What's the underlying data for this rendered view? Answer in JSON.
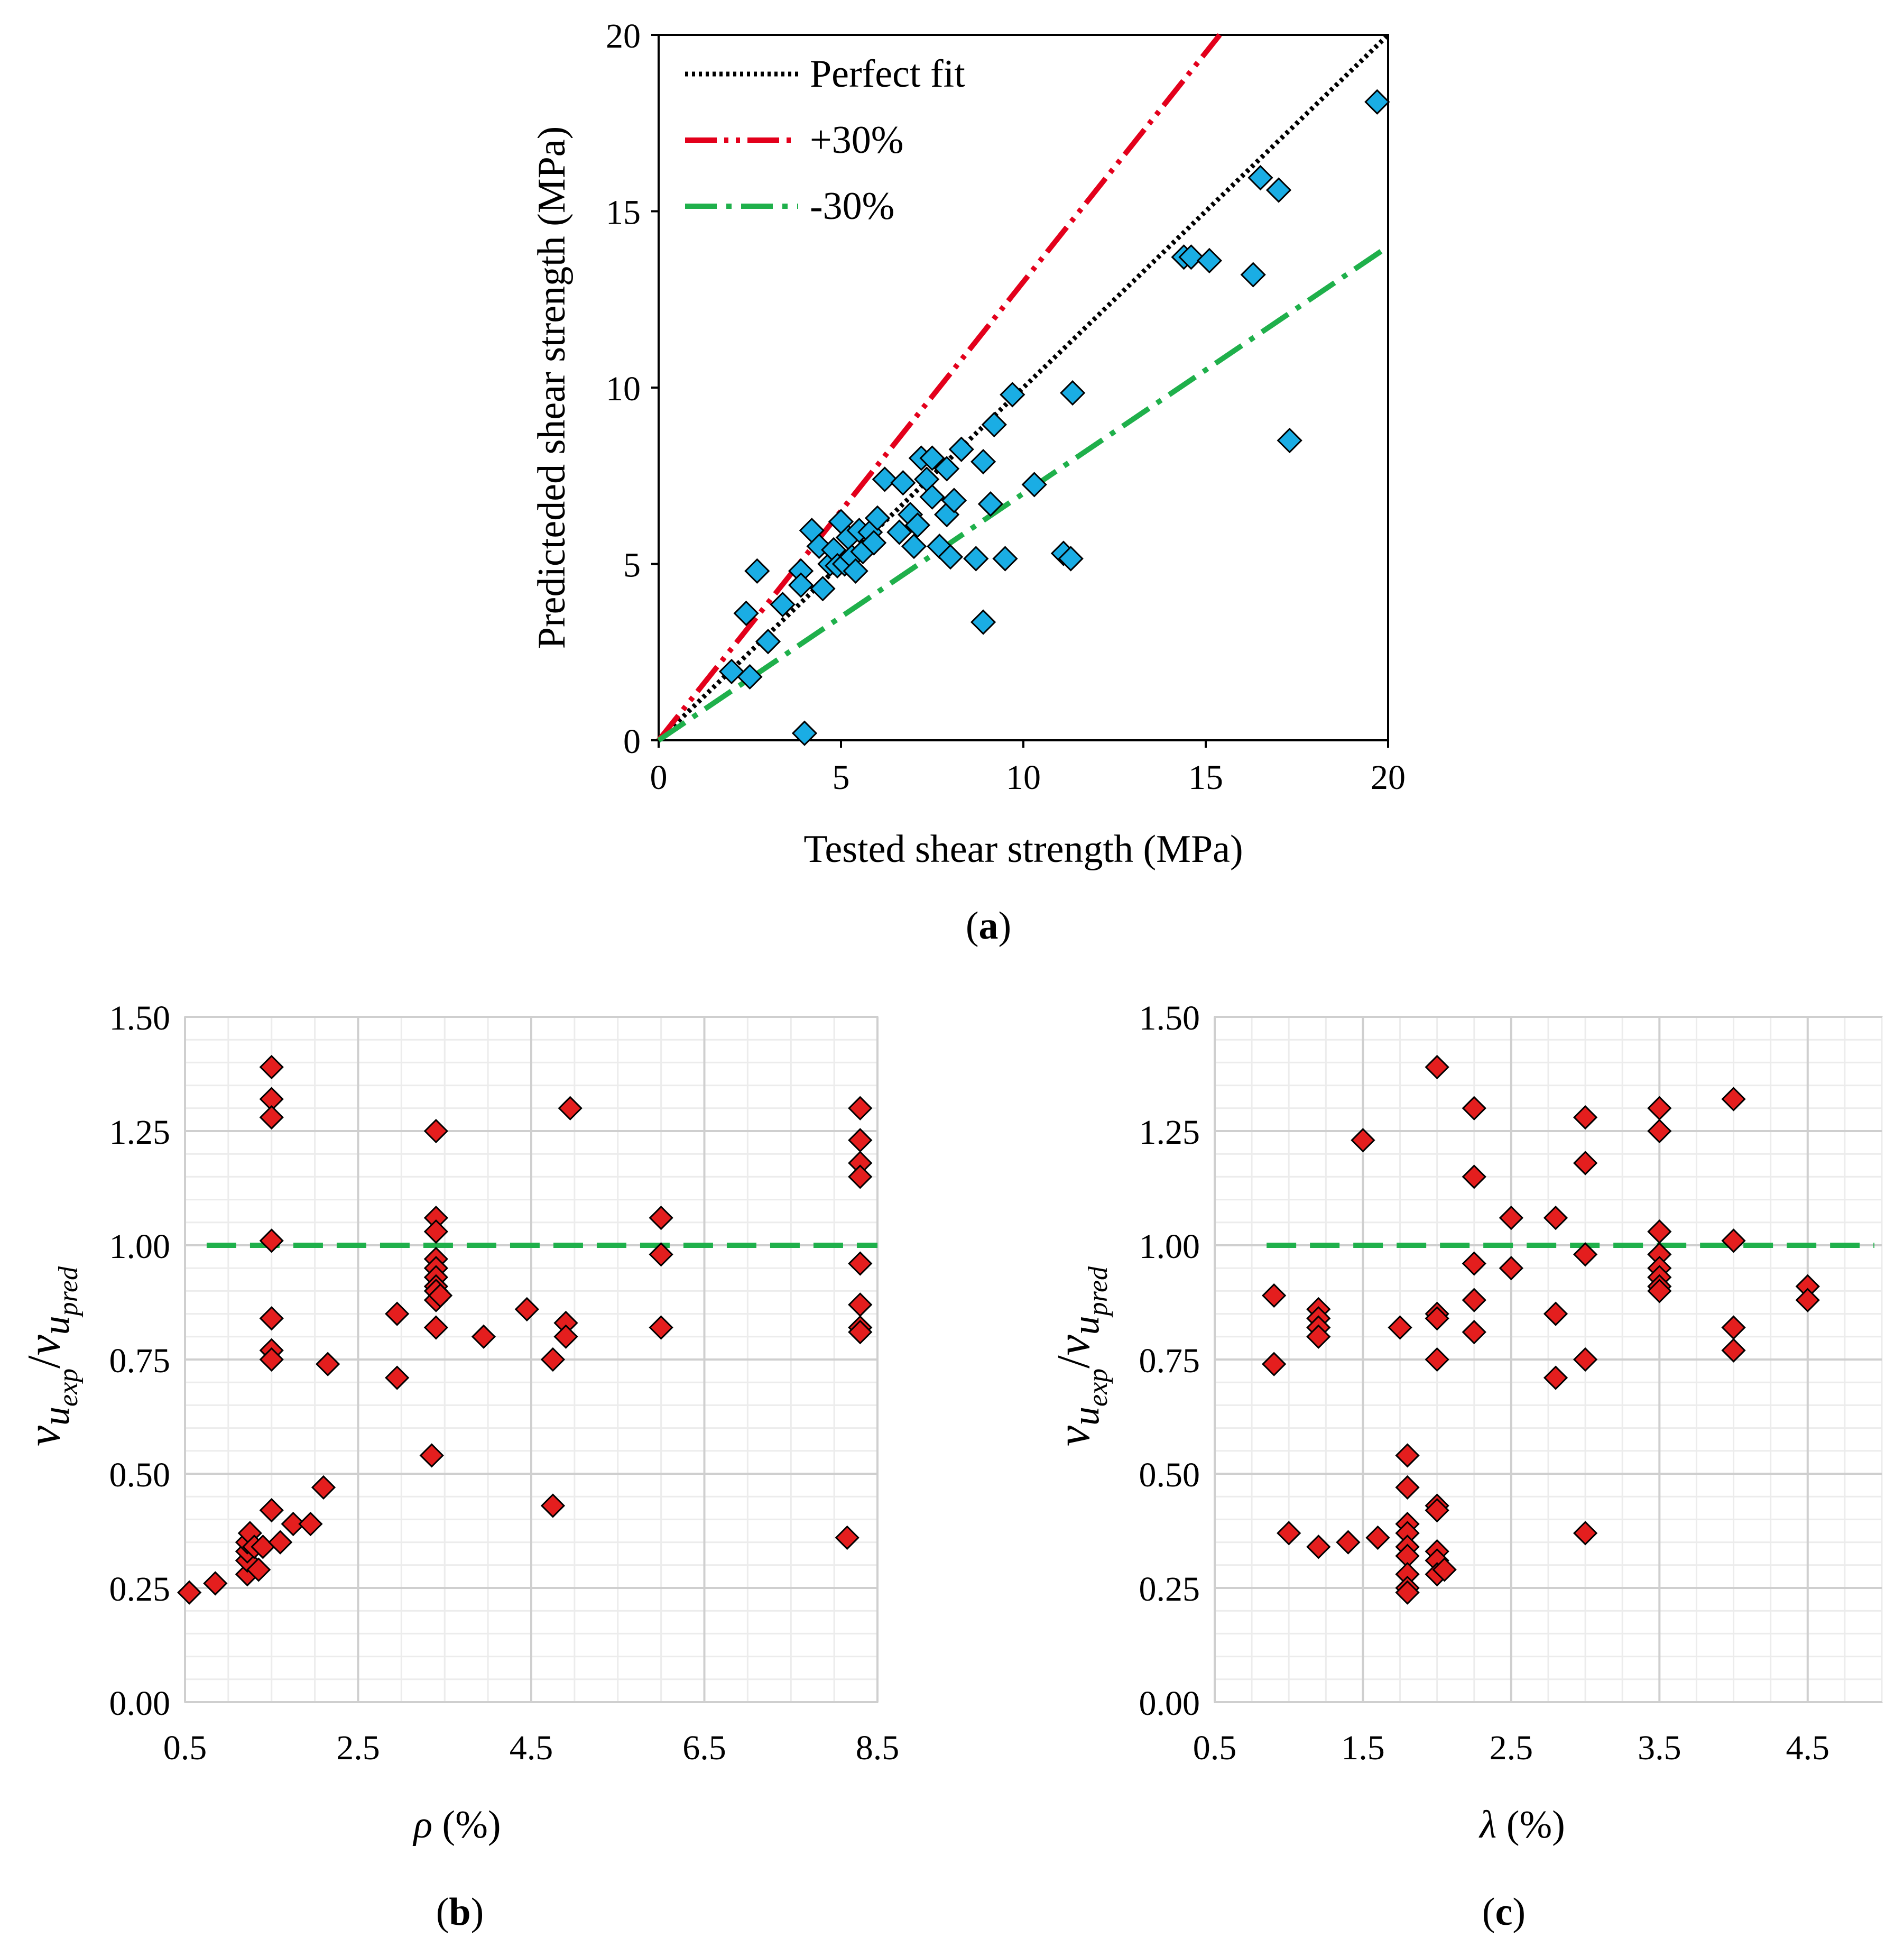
{
  "colors": {
    "marker_a": "#1AADE4",
    "marker_bc": "#E41E1E",
    "perfect_fit": "#000000",
    "plus30": "#E3001B",
    "minus30": "#1FB04B",
    "unity": "#1FB04B"
  },
  "chart_data": [
    {
      "id": "a",
      "type": "scatter",
      "caption_letter": "a",
      "caption_open": "(",
      "caption_close": ")",
      "xlabel": "Tested shear strength (MPa)",
      "ylabel": "Predicteded shear strength (MPa)",
      "xlim": [
        0,
        20
      ],
      "ylim": [
        0,
        20
      ],
      "xticks": [
        0,
        5,
        10,
        15,
        20
      ],
      "yticks": [
        0,
        5,
        10,
        15,
        20
      ],
      "legend": [
        {
          "label": "Perfect fit",
          "style": "dotted",
          "color": "#000000"
        },
        {
          "label": "+30%",
          "style": "dash-dot-dot",
          "color": "#E3001B"
        },
        {
          "label": "-30%",
          "style": "dash-dot",
          "color": "#1FB04B"
        }
      ],
      "lines": [
        {
          "name": "Perfect fit",
          "slope": 1.0
        },
        {
          "name": "+30%",
          "slope": 1.3
        },
        {
          "name": "-30%",
          "slope": 0.7
        }
      ],
      "points": [
        [
          2.0,
          1.95
        ],
        [
          2.5,
          1.8
        ],
        [
          2.4,
          3.6
        ],
        [
          2.7,
          4.8
        ],
        [
          3.0,
          2.8
        ],
        [
          3.4,
          3.85
        ],
        [
          3.9,
          4.8
        ],
        [
          3.9,
          4.4
        ],
        [
          4.0,
          0.2
        ],
        [
          4.2,
          5.95
        ],
        [
          4.4,
          5.5
        ],
        [
          4.5,
          4.3
        ],
        [
          4.7,
          5.0
        ],
        [
          4.8,
          5.4
        ],
        [
          4.9,
          4.95
        ],
        [
          5.0,
          6.2
        ],
        [
          5.1,
          5.0
        ],
        [
          5.2,
          5.75
        ],
        [
          5.3,
          5.2
        ],
        [
          5.4,
          4.8
        ],
        [
          5.5,
          5.95
        ],
        [
          5.6,
          5.35
        ],
        [
          5.8,
          5.9
        ],
        [
          5.9,
          5.6
        ],
        [
          6.0,
          6.3
        ],
        [
          6.2,
          7.4
        ],
        [
          6.6,
          5.9
        ],
        [
          6.7,
          7.3
        ],
        [
          6.9,
          6.4
        ],
        [
          7.0,
          5.5
        ],
        [
          7.1,
          6.1
        ],
        [
          7.2,
          8.0
        ],
        [
          7.35,
          7.4
        ],
        [
          7.5,
          8.0
        ],
        [
          7.5,
          6.9
        ],
        [
          7.7,
          5.5
        ],
        [
          7.9,
          6.4
        ],
        [
          7.9,
          7.7
        ],
        [
          8.0,
          5.2
        ],
        [
          8.1,
          6.8
        ],
        [
          8.3,
          8.25
        ],
        [
          8.7,
          5.15
        ],
        [
          8.9,
          7.9
        ],
        [
          8.9,
          3.35
        ],
        [
          9.1,
          6.7
        ],
        [
          9.2,
          8.95
        ],
        [
          9.5,
          5.15
        ],
        [
          9.7,
          9.8
        ],
        [
          10.3,
          7.25
        ],
        [
          11.1,
          5.3
        ],
        [
          11.3,
          5.15
        ],
        [
          11.35,
          9.85
        ],
        [
          14.4,
          13.7
        ],
        [
          14.6,
          13.7
        ],
        [
          15.1,
          13.6
        ],
        [
          16.3,
          13.2
        ],
        [
          16.5,
          15.95
        ],
        [
          17.0,
          15.6
        ],
        [
          17.3,
          8.5
        ],
        [
          19.7,
          18.1
        ]
      ]
    },
    {
      "id": "b",
      "type": "scatter",
      "caption_letter": "b",
      "caption_open": "(",
      "caption_close": ")",
      "xlabel_symbol": "ρ",
      "xlabel_unit": " (%)",
      "ylabel_sym": "v",
      "ylabel_sub": "u",
      "ylabel_subsub1": "exp",
      "ylabel_slash": "/",
      "ylabel_subsub2": "pred",
      "xlim": [
        0.5,
        8.5
      ],
      "ylim": [
        0.0,
        1.5
      ],
      "xticks": [
        "0.5",
        "2.5",
        "4.5",
        "6.5",
        "8.5"
      ],
      "yticks": [
        "0.00",
        "0.25",
        "0.50",
        "0.75",
        "1.00",
        "1.25",
        "1.50"
      ],
      "reference_line": {
        "y": 1.0,
        "x_from": 0.75,
        "x_to": 8.5,
        "style": "dashed"
      },
      "points": [
        [
          0.55,
          0.24
        ],
        [
          0.85,
          0.26
        ],
        [
          1.22,
          0.28
        ],
        [
          1.22,
          0.31
        ],
        [
          1.22,
          0.33
        ],
        [
          1.22,
          0.35
        ],
        [
          1.25,
          0.37
        ],
        [
          1.3,
          0.34
        ],
        [
          1.35,
          0.29
        ],
        [
          1.4,
          0.34
        ],
        [
          1.5,
          0.42
        ],
        [
          1.6,
          0.35
        ],
        [
          1.75,
          0.39
        ],
        [
          1.95,
          0.39
        ],
        [
          2.1,
          0.47
        ],
        [
          2.15,
          0.74
        ],
        [
          1.5,
          1.39
        ],
        [
          1.5,
          1.32
        ],
        [
          1.5,
          1.28
        ],
        [
          1.5,
          1.01
        ],
        [
          1.5,
          0.84
        ],
        [
          1.5,
          0.77
        ],
        [
          1.5,
          0.75
        ],
        [
          2.95,
          0.85
        ],
        [
          2.95,
          0.71
        ],
        [
          3.35,
          0.54
        ],
        [
          3.4,
          0.82
        ],
        [
          3.4,
          1.25
        ],
        [
          3.4,
          1.06
        ],
        [
          3.4,
          1.03
        ],
        [
          3.4,
          0.97
        ],
        [
          3.4,
          0.95
        ],
        [
          3.4,
          0.93
        ],
        [
          3.4,
          0.91
        ],
        [
          3.4,
          0.9
        ],
        [
          3.4,
          0.88
        ],
        [
          3.45,
          0.89
        ],
        [
          3.95,
          0.8
        ],
        [
          4.45,
          0.86
        ],
        [
          4.75,
          0.75
        ],
        [
          4.75,
          0.43
        ],
        [
          4.9,
          0.83
        ],
        [
          4.9,
          0.8
        ],
        [
          4.95,
          1.3
        ],
        [
          6.0,
          1.06
        ],
        [
          6.0,
          0.98
        ],
        [
          6.0,
          0.82
        ],
        [
          8.15,
          0.36
        ],
        [
          8.3,
          1.3
        ],
        [
          8.3,
          1.23
        ],
        [
          8.3,
          1.18
        ],
        [
          8.3,
          1.15
        ],
        [
          8.3,
          0.96
        ],
        [
          8.3,
          0.87
        ],
        [
          8.3,
          0.82
        ],
        [
          8.3,
          0.81
        ]
      ]
    },
    {
      "id": "c",
      "type": "scatter",
      "caption_letter": "c",
      "caption_open": "(",
      "caption_close": ")",
      "xlabel_symbol": "λ",
      "xlabel_unit": " (%)",
      "ylabel_sym": "v",
      "ylabel_sub": "u",
      "ylabel_subsub1": "exp",
      "ylabel_slash": "/",
      "ylabel_subsub2": "pred",
      "xlim": [
        0.5,
        5.0
      ],
      "ylim": [
        0.0,
        1.5
      ],
      "xticks": [
        "0.5",
        "1.5",
        "2.5",
        "3.5",
        "4.5"
      ],
      "yticks": [
        "0.00",
        "0.25",
        "0.50",
        "0.75",
        "1.00",
        "1.25",
        "1.50"
      ],
      "reference_line": {
        "y": 1.0,
        "x_from": 0.85,
        "x_to": 4.95,
        "style": "dashed"
      },
      "points": [
        [
          0.9,
          0.89
        ],
        [
          0.9,
          0.74
        ],
        [
          1.0,
          0.37
        ],
        [
          1.2,
          0.34
        ],
        [
          1.2,
          0.86
        ],
        [
          1.2,
          0.84
        ],
        [
          1.2,
          0.82
        ],
        [
          1.2,
          0.8
        ],
        [
          1.4,
          0.35
        ],
        [
          1.5,
          1.23
        ],
        [
          1.6,
          0.36
        ],
        [
          1.75,
          0.82
        ],
        [
          1.8,
          0.54
        ],
        [
          1.8,
          0.47
        ],
        [
          1.8,
          0.39
        ],
        [
          1.8,
          0.37
        ],
        [
          1.8,
          0.34
        ],
        [
          1.8,
          0.32
        ],
        [
          1.8,
          0.28
        ],
        [
          1.8,
          0.25
        ],
        [
          1.8,
          0.24
        ],
        [
          2.0,
          1.39
        ],
        [
          2.0,
          0.85
        ],
        [
          2.0,
          0.84
        ],
        [
          2.0,
          0.75
        ],
        [
          2.0,
          0.43
        ],
        [
          2.0,
          0.42
        ],
        [
          2.0,
          0.33
        ],
        [
          2.0,
          0.31
        ],
        [
          2.0,
          0.28
        ],
        [
          2.05,
          0.29
        ],
        [
          2.25,
          1.3
        ],
        [
          2.25,
          1.15
        ],
        [
          2.25,
          0.96
        ],
        [
          2.25,
          0.88
        ],
        [
          2.25,
          0.81
        ],
        [
          2.5,
          1.06
        ],
        [
          2.5,
          0.95
        ],
        [
          2.8,
          1.06
        ],
        [
          2.8,
          0.85
        ],
        [
          2.8,
          0.71
        ],
        [
          3.0,
          1.28
        ],
        [
          3.0,
          1.18
        ],
        [
          3.0,
          0.98
        ],
        [
          3.0,
          0.75
        ],
        [
          3.0,
          0.37
        ],
        [
          3.5,
          1.3
        ],
        [
          3.5,
          1.25
        ],
        [
          3.5,
          1.03
        ],
        [
          3.5,
          0.98
        ],
        [
          3.5,
          0.95
        ],
        [
          3.5,
          0.93
        ],
        [
          3.5,
          0.91
        ],
        [
          3.5,
          0.9
        ],
        [
          4.0,
          1.32
        ],
        [
          4.0,
          1.01
        ],
        [
          4.0,
          0.82
        ],
        [
          4.0,
          0.77
        ],
        [
          4.5,
          0.91
        ],
        [
          4.5,
          0.88
        ]
      ]
    }
  ]
}
